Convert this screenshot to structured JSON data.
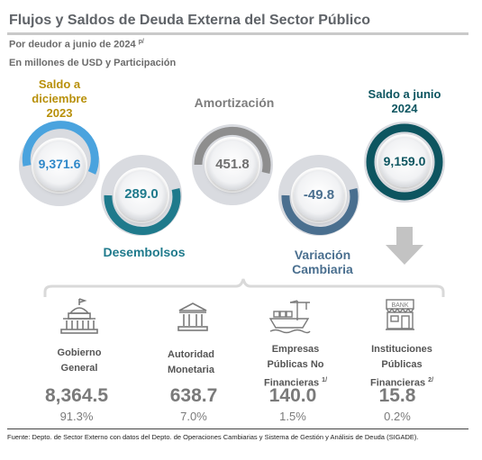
{
  "header": {
    "title": "Flujos y Saldos de Deuda Externa del Sector Público",
    "subtitle_main": "Por deudor a junio de 2024",
    "subtitle_sup": "p/",
    "units": "En millones de USD y Participación"
  },
  "flow": {
    "saldo_inicial": {
      "label": "Saldo a diciembre 2023",
      "value": "9,371.6",
      "color": "#b8900a"
    },
    "desembolsos": {
      "label": "Desembolsos",
      "value": "289.0",
      "color": "#1f7a8c"
    },
    "amortizacion": {
      "label": "Amortización",
      "value": "451.8",
      "color": "#7d7d7d"
    },
    "variacion": {
      "label": "Variación Cambiaria",
      "value": "-49.8",
      "color": "#4a6f8f"
    },
    "saldo_final": {
      "label": "Saldo a junio 2024",
      "value": "9,159.0",
      "color": "#0d5560"
    }
  },
  "sectors": [
    {
      "name": "Gobierno General",
      "sup": "",
      "value": "8,364.5",
      "pct": "91.3%",
      "icon": "government-building-icon"
    },
    {
      "name": "Autoridad Monetaria",
      "sup": "",
      "value": "638.7",
      "pct": "7.0%",
      "icon": "bank-columns-icon"
    },
    {
      "name": "Empresas Públicas No Financieras",
      "sup": "1/",
      "value": "140.0",
      "pct": "1.5%",
      "icon": "ship-crane-icon"
    },
    {
      "name": "Instituciones Públicas Financieras",
      "sup": "2/",
      "value": "15.8",
      "pct": "0.2%",
      "icon": "bank-storefront-icon"
    }
  ],
  "footer": {
    "source": "Fuente: Depto. de Sector Externo con datos del Depto. de Operaciones Cambiarias y Sistema de Gestión y Análisis de Deuda (SIGADE)."
  }
}
